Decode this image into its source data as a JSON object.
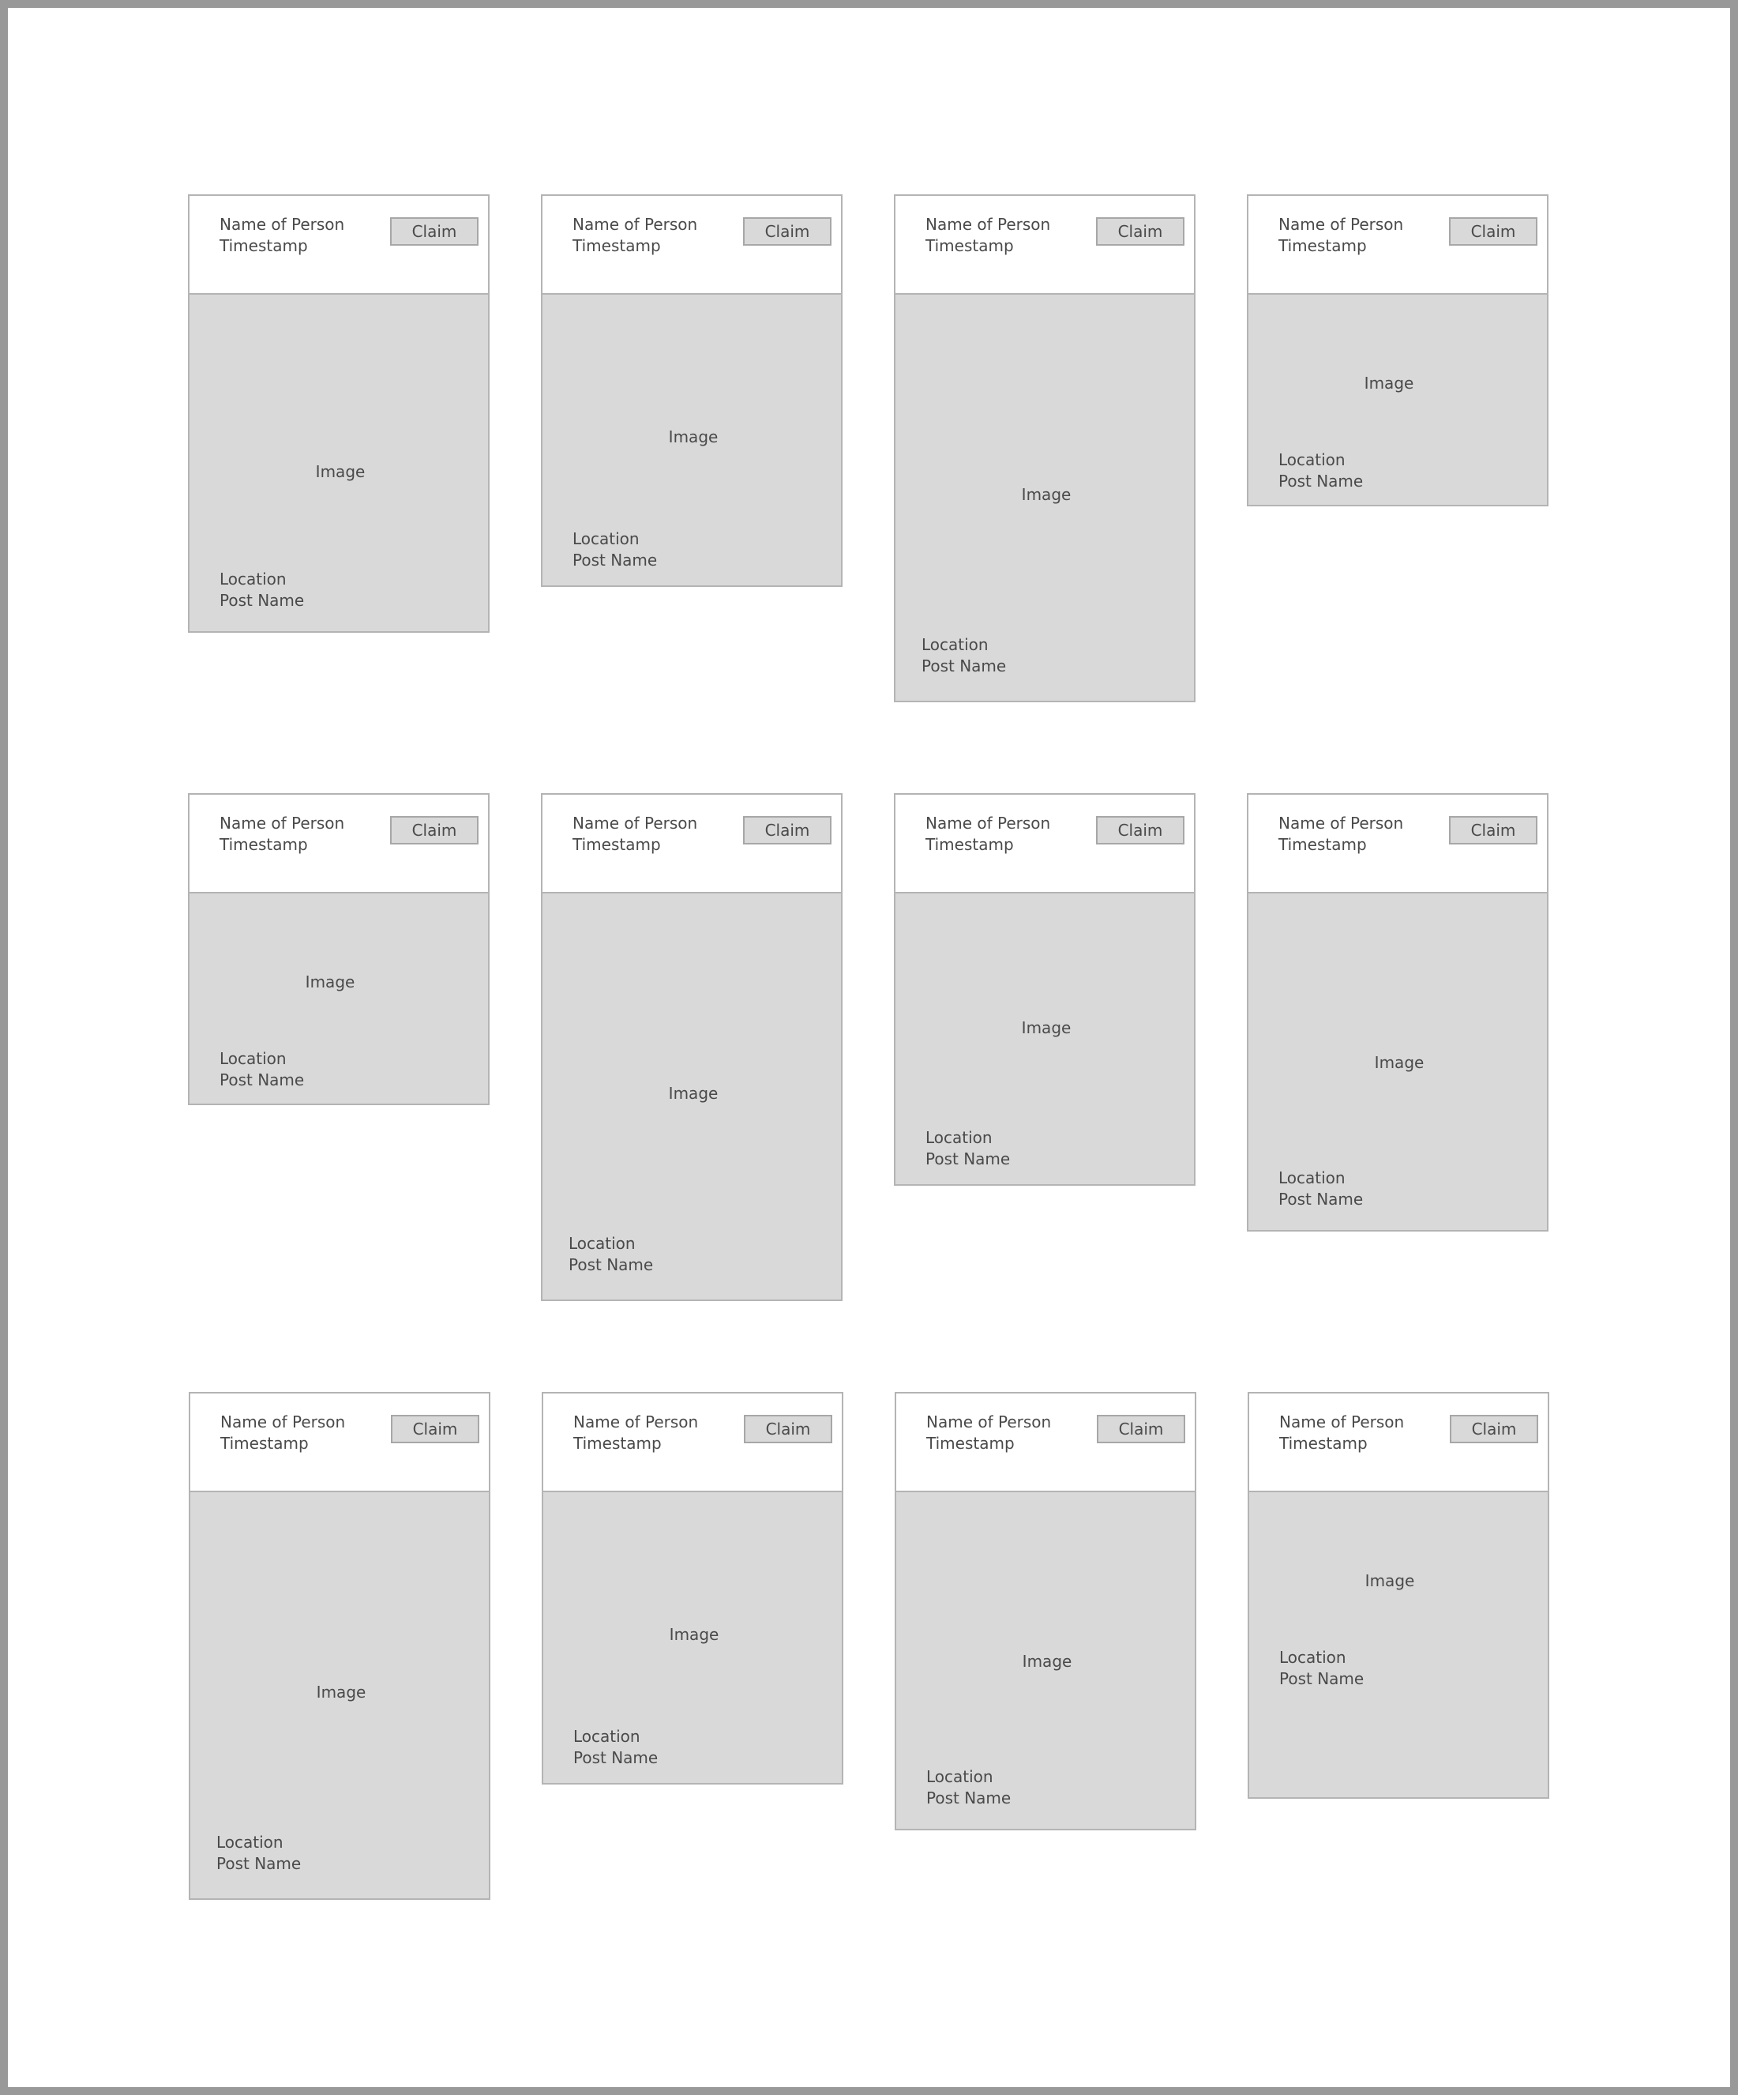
{
  "cards": [
    {
      "name": "Name of Person",
      "timestamp": "Timestamp",
      "claim_label": "Claim",
      "image_label": "Image",
      "location": "Location",
      "post_name": "Post Name"
    },
    {
      "name": "Name of Person",
      "timestamp": "Timestamp",
      "claim_label": "Claim",
      "image_label": "Image",
      "location": "Location",
      "post_name": "Post Name"
    },
    {
      "name": "Name of Person",
      "timestamp": "Timestamp",
      "claim_label": "Claim",
      "image_label": "Image",
      "location": "Location",
      "post_name": "Post Name"
    },
    {
      "name": "Name of Person",
      "timestamp": "Timestamp",
      "claim_label": "Claim",
      "image_label": "Image",
      "location": "Location",
      "post_name": "Post Name"
    },
    {
      "name": "Name of Person",
      "timestamp": "Timestamp",
      "claim_label": "Claim",
      "image_label": "Image",
      "location": "Location",
      "post_name": "Post Name"
    },
    {
      "name": "Name of Person",
      "timestamp": "Timestamp",
      "claim_label": "Claim",
      "image_label": "Image",
      "location": "Location",
      "post_name": "Post Name"
    },
    {
      "name": "Name of Person",
      "timestamp": "Timestamp",
      "claim_label": "Claim",
      "image_label": "Image",
      "location": "Location",
      "post_name": "Post Name"
    },
    {
      "name": "Name of Person",
      "timestamp": "Timestamp",
      "claim_label": "Claim",
      "image_label": "Image",
      "location": "Location",
      "post_name": "Post Name"
    },
    {
      "name": "Name of Person",
      "timestamp": "Timestamp",
      "claim_label": "Claim",
      "image_label": "Image",
      "location": "Location",
      "post_name": "Post Name"
    },
    {
      "name": "Name of Person",
      "timestamp": "Timestamp",
      "claim_label": "Claim",
      "image_label": "Image",
      "location": "Location",
      "post_name": "Post Name"
    },
    {
      "name": "Name of Person",
      "timestamp": "Timestamp",
      "claim_label": "Claim",
      "image_label": "Image",
      "location": "Location",
      "post_name": "Post Name"
    },
    {
      "name": "Name of Person",
      "timestamp": "Timestamp",
      "claim_label": "Claim",
      "image_label": "Image",
      "location": "Location",
      "post_name": "Post Name"
    }
  ]
}
